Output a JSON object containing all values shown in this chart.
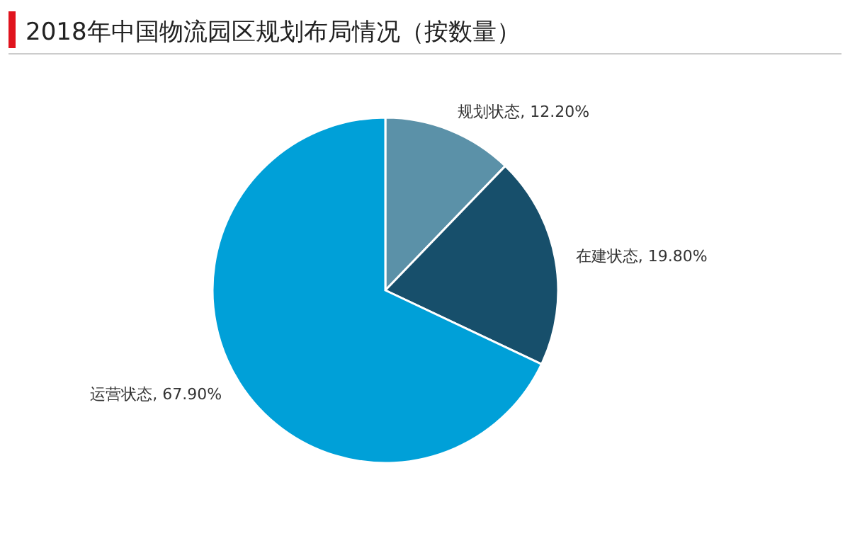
{
  "chart_data": {
    "type": "pie",
    "title": "2018年中国物流园区规划布局情况（按数量）",
    "categories": [
      "规划状态",
      "在建状态",
      "运营状态"
    ],
    "values": [
      12.2,
      19.8,
      67.9
    ],
    "value_labels": [
      "12.20%",
      "19.80%",
      "67.90%"
    ],
    "colors": [
      "#5b91a8",
      "#174f6b",
      "#00a0d8"
    ]
  }
}
